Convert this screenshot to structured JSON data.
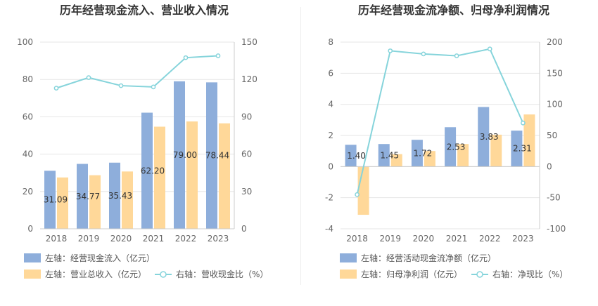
{
  "colors": {
    "bar_primary": "#8EAEDB",
    "bar_secondary": "#FFD899",
    "line": "#86D4DB",
    "grid": "#E6E6E6",
    "divider": "#EEEEEE"
  },
  "chart_data": [
    {
      "type": "bar",
      "title": "历年经营现金流入、营业收入情况",
      "categories": [
        "2018",
        "2019",
        "2020",
        "2021",
        "2022",
        "2023"
      ],
      "y_left": {
        "range": [
          0,
          100
        ],
        "ticks": [
          "0",
          "20",
          "40",
          "60",
          "80",
          "100"
        ]
      },
      "y_right": {
        "range": [
          0,
          150
        ],
        "ticks": [
          "0",
          "30",
          "60",
          "90",
          "120",
          "150"
        ]
      },
      "grid": true,
      "legend_position": "bottom",
      "series": [
        {
          "name": "左轴：经营现金流入（亿元）",
          "kind": "bar",
          "axis": "left",
          "values": [
            31.09,
            34.77,
            35.43,
            62.2,
            79.0,
            78.44
          ],
          "labels": [
            "31.09",
            "34.77",
            "35.43",
            "62.20",
            "79.00",
            "78.44"
          ]
        },
        {
          "name": "左轴：营业总收入（亿元）",
          "kind": "bar",
          "axis": "left",
          "values": [
            27.5,
            28.7,
            30.7,
            54.7,
            57.5,
            56.5
          ]
        },
        {
          "name": "右轴：营收现金比（%）",
          "kind": "line",
          "axis": "right",
          "values": [
            113,
            121.5,
            115,
            114,
            137.5,
            139
          ]
        }
      ]
    },
    {
      "type": "bar",
      "title": "历年经营现金流净额、归母净利润情况",
      "categories": [
        "2018",
        "2019",
        "2020",
        "2021",
        "2022",
        "2023"
      ],
      "y_left": {
        "range": [
          -4,
          8
        ],
        "ticks": [
          "-4",
          "-2",
          "0",
          "2",
          "4",
          "6",
          "8"
        ]
      },
      "y_right": {
        "range": [
          -100,
          200
        ],
        "ticks": [
          "-100",
          "-50",
          "0",
          "50",
          "100",
          "150",
          "200"
        ]
      },
      "grid": true,
      "legend_position": "bottom",
      "series": [
        {
          "name": "左轴：经营活动现金流净额（亿元）",
          "kind": "bar",
          "axis": "left",
          "values": [
            1.4,
            1.45,
            1.72,
            2.53,
            3.83,
            2.31
          ],
          "labels": [
            "1.40",
            "1.45",
            "1.72",
            "2.53",
            "3.83",
            "2.31"
          ]
        },
        {
          "name": "左轴：归母净利润（亿元）",
          "kind": "bar",
          "axis": "left",
          "values": [
            -3.1,
            0.8,
            1.0,
            1.45,
            2.05,
            3.35
          ]
        },
        {
          "name": "右轴：净现比（%）",
          "kind": "line",
          "axis": "right",
          "values": [
            -45,
            186,
            181,
            178,
            189,
            70
          ]
        }
      ]
    }
  ]
}
